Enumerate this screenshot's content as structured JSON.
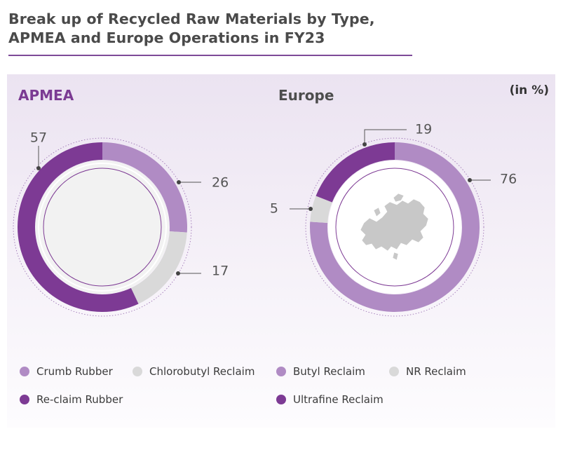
{
  "title": "Break up of Recycled Raw Materials by Type, APMEA and Europe Operations in FY23",
  "unit_label": "(in %)",
  "colors": {
    "dark_purple": "#7d3a94",
    "light_purple": "#b08bc4",
    "light_gray": "#d9d9d9",
    "title_accent": "#7e4a98"
  },
  "legend": [
    {
      "label": "Crumb Rubber",
      "color": "#b08bc4"
    },
    {
      "label": "Chlorobutyl Reclaim",
      "color": "#d9d9d9"
    },
    {
      "label": "Butyl Reclaim",
      "color": "#b08bc4"
    },
    {
      "label": "NR Reclaim",
      "color": "#d9d9d9"
    },
    {
      "label": "Re-claim Rubber",
      "color": "#7d3a94"
    },
    {
      "label": "Ultrafine Reclaim",
      "color": "#7d3a94"
    }
  ],
  "chart_data": [
    {
      "type": "pie",
      "title": "APMEA",
      "slices": [
        {
          "label": "Crumb Rubber",
          "value": 26,
          "color": "#b08bc4"
        },
        {
          "label": "Chlorobutyl Reclaim",
          "value": 17,
          "color": "#d9d9d9"
        },
        {
          "label": "Re-claim Rubber",
          "value": 57,
          "color": "#7d3a94"
        }
      ]
    },
    {
      "type": "pie",
      "title": "Europe",
      "slices": [
        {
          "label": "Butyl Reclaim",
          "value": 76,
          "color": "#b08bc4"
        },
        {
          "label": "NR Reclaim",
          "value": 5,
          "color": "#d9d9d9"
        },
        {
          "label": "Ultrafine Reclaim",
          "value": 19,
          "color": "#7d3a94"
        }
      ]
    }
  ]
}
